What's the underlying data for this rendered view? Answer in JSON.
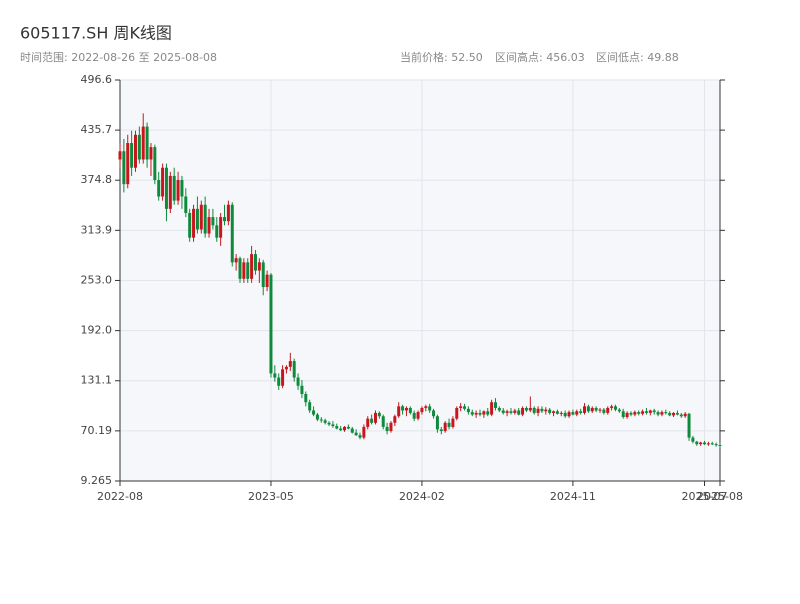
{
  "chart_data": {
    "type": "candlestick",
    "title": "605117.SH 周K线图",
    "range_text": "时间范围: 2022-08-26 至 2025-08-08",
    "current_price": "当前价格: 52.50",
    "range_high": "区间高点: 456.03",
    "range_low": "区间低点: 49.88",
    "up_color": "#c8161d",
    "down_color": "#0f8a3c",
    "grid": true,
    "ylim": [
      9.265,
      496.6
    ],
    "yticks": [
      9.265,
      70.19,
      131.1,
      {
        "value": 192.0,
        "label": "192.0"
      },
      {
        "value": 253.0,
        "label": "253.0"
      },
      313.9,
      374.8,
      435.7,
      496.6
    ],
    "xlim": [
      0,
      155
    ],
    "xticks": [
      {
        "value": 0,
        "label": "2022-08"
      },
      {
        "value": 39,
        "label": "2023-05"
      },
      {
        "value": 78,
        "label": "2024-02"
      },
      {
        "value": 117,
        "label": "2024-11"
      },
      {
        "value": 151,
        "label": "2025-07"
      },
      {
        "value": 155,
        "label": "2025-08"
      }
    ],
    "ohlc": [
      [
        400,
        420,
        390,
        410
      ],
      [
        410,
        425,
        360,
        370
      ],
      [
        370,
        430,
        365,
        420
      ],
      [
        420,
        435,
        380,
        390
      ],
      [
        390,
        435,
        385,
        430
      ],
      [
        430,
        440,
        395,
        400
      ],
      [
        400,
        456.03,
        395,
        440
      ],
      [
        440,
        445,
        390,
        400
      ],
      [
        400,
        420,
        380,
        415
      ],
      [
        415,
        418,
        370,
        375
      ],
      [
        375,
        385,
        350,
        355
      ],
      [
        355,
        395,
        350,
        390
      ],
      [
        390,
        395,
        325,
        340
      ],
      [
        340,
        385,
        335,
        380
      ],
      [
        380,
        390,
        345,
        350
      ],
      [
        350,
        385,
        345,
        375
      ],
      [
        375,
        380,
        340,
        355
      ],
      [
        355,
        365,
        330,
        335
      ],
      [
        335,
        340,
        300,
        305
      ],
      [
        305,
        345,
        300,
        340
      ],
      [
        340,
        355,
        310,
        315
      ],
      [
        315,
        350,
        310,
        345
      ],
      [
        345,
        355,
        305,
        310
      ],
      [
        310,
        340,
        305,
        330
      ],
      [
        330,
        340,
        315,
        320
      ],
      [
        320,
        330,
        300,
        305
      ],
      [
        305,
        335,
        295,
        330
      ],
      [
        330,
        345,
        320,
        325
      ],
      [
        325,
        350,
        320,
        345
      ],
      [
        345,
        348,
        270,
        275
      ],
      [
        275,
        285,
        265,
        280
      ],
      [
        280,
        282,
        250,
        255
      ],
      [
        255,
        280,
        250,
        275
      ],
      [
        275,
        280,
        250,
        255
      ],
      [
        255,
        295,
        250,
        285
      ],
      [
        285,
        290,
        260,
        265
      ],
      [
        265,
        280,
        250,
        275
      ],
      [
        275,
        278,
        235,
        245
      ],
      [
        245,
        265,
        240,
        260
      ],
      [
        260,
        262,
        135,
        140
      ],
      [
        140,
        150,
        130,
        135
      ],
      [
        135,
        140,
        120,
        125
      ],
      [
        125,
        150,
        122,
        145
      ],
      [
        145,
        150,
        140,
        148
      ],
      [
        148,
        165,
        143,
        155
      ],
      [
        155,
        158,
        130,
        135
      ],
      [
        135,
        140,
        120,
        125
      ],
      [
        125,
        132,
        110,
        115
      ],
      [
        115,
        118,
        100,
        105
      ],
      [
        105,
        108,
        92,
        95
      ],
      [
        95,
        100,
        88,
        90
      ],
      [
        90,
        92,
        82,
        84
      ],
      [
        84,
        87,
        80,
        83
      ],
      [
        83,
        85,
        78,
        80
      ],
      [
        80,
        82,
        76,
        78
      ],
      [
        78,
        82,
        74,
        76
      ],
      [
        76,
        79,
        72,
        73
      ],
      [
        73,
        76,
        70,
        71
      ],
      [
        71,
        76,
        69,
        75
      ],
      [
        75,
        78,
        72,
        73
      ],
      [
        73,
        75,
        67,
        68
      ],
      [
        68,
        72,
        64,
        65
      ],
      [
        65,
        68,
        60,
        62
      ],
      [
        62,
        78,
        60,
        75
      ],
      [
        75,
        88,
        72,
        85
      ],
      [
        85,
        90,
        78,
        80
      ],
      [
        80,
        95,
        78,
        92
      ],
      [
        92,
        94,
        85,
        88
      ],
      [
        88,
        90,
        72,
        75
      ],
      [
        75,
        80,
        66,
        70
      ],
      [
        70,
        82,
        68,
        80
      ],
      [
        80,
        90,
        76,
        88
      ],
      [
        88,
        105,
        86,
        100
      ],
      [
        100,
        102,
        90,
        95
      ],
      [
        95,
        100,
        88,
        98
      ],
      [
        98,
        100,
        90,
        92
      ],
      [
        92,
        95,
        82,
        85
      ],
      [
        85,
        95,
        83,
        93
      ],
      [
        93,
        100,
        90,
        98
      ],
      [
        98,
        102,
        94,
        100
      ],
      [
        100,
        103,
        92,
        95
      ],
      [
        95,
        97,
        85,
        88
      ],
      [
        88,
        90,
        68,
        72
      ],
      [
        72,
        75,
        66,
        70
      ],
      [
        70,
        82,
        68,
        80
      ],
      [
        80,
        85,
        72,
        75
      ],
      [
        75,
        88,
        73,
        85
      ],
      [
        85,
        100,
        83,
        98
      ],
      [
        98,
        104,
        94,
        100
      ],
      [
        100,
        103,
        95,
        97
      ],
      [
        97,
        100,
        90,
        93
      ],
      [
        93,
        96,
        88,
        90
      ],
      [
        90,
        95,
        86,
        92
      ],
      [
        92,
        96,
        88,
        90
      ],
      [
        90,
        95,
        86,
        94
      ],
      [
        94,
        98,
        88,
        90
      ],
      [
        90,
        108,
        88,
        105
      ],
      [
        105,
        110,
        95,
        98
      ],
      [
        98,
        100,
        93,
        95
      ],
      [
        95,
        98,
        90,
        92
      ],
      [
        92,
        96,
        88,
        94
      ],
      [
        94,
        98,
        90,
        92
      ],
      [
        92,
        97,
        90,
        95
      ],
      [
        95,
        98,
        89,
        90
      ],
      [
        90,
        100,
        88,
        98
      ],
      [
        98,
        100,
        93,
        95
      ],
      [
        95,
        112,
        93,
        98
      ],
      [
        98,
        100,
        90,
        92
      ],
      [
        92,
        100,
        88,
        97
      ],
      [
        97,
        100,
        92,
        94
      ],
      [
        94,
        99,
        90,
        96
      ],
      [
        96,
        98,
        90,
        92
      ],
      [
        92,
        95,
        88,
        94
      ],
      [
        94,
        96,
        90,
        91
      ],
      [
        91,
        94,
        88,
        92
      ],
      [
        92,
        95,
        86,
        88
      ],
      [
        88,
        95,
        86,
        93
      ],
      [
        93,
        96,
        89,
        90
      ],
      [
        90,
        96,
        88,
        94
      ],
      [
        94,
        97,
        90,
        92
      ],
      [
        92,
        104,
        90,
        100
      ],
      [
        100,
        102,
        92,
        94
      ],
      [
        94,
        100,
        92,
        98
      ],
      [
        98,
        100,
        93,
        95
      ],
      [
        95,
        98,
        92,
        96
      ],
      [
        96,
        98,
        90,
        92
      ],
      [
        92,
        100,
        90,
        98
      ],
      [
        98,
        102,
        95,
        100
      ],
      [
        100,
        102,
        94,
        96
      ],
      [
        96,
        98,
        92,
        94
      ],
      [
        94,
        97,
        85,
        87
      ],
      [
        87,
        94,
        85,
        92
      ],
      [
        92,
        94,
        88,
        90
      ],
      [
        90,
        95,
        88,
        93
      ],
      [
        93,
        95,
        89,
        91
      ],
      [
        91,
        96,
        89,
        94
      ],
      [
        94,
        98,
        90,
        92
      ],
      [
        92,
        96,
        89,
        95
      ],
      [
        95,
        97,
        90,
        93
      ],
      [
        93,
        95,
        88,
        90
      ],
      [
        90,
        95,
        88,
        93
      ],
      [
        93,
        96,
        90,
        92
      ],
      [
        92,
        94,
        88,
        89
      ],
      [
        89,
        93,
        87,
        92
      ],
      [
        92,
        95,
        89,
        90
      ],
      [
        90,
        92,
        86,
        88
      ],
      [
        88,
        93,
        86,
        91
      ],
      [
        91,
        92,
        58,
        62
      ],
      [
        62,
        64,
        55,
        57
      ],
      [
        57,
        58,
        52,
        54
      ],
      [
        54,
        57,
        52,
        56
      ],
      [
        56,
        58,
        53,
        54
      ],
      [
        54,
        57,
        52,
        55
      ],
      [
        55,
        57,
        53,
        54
      ],
      [
        54,
        56,
        51,
        53
      ],
      [
        53,
        55,
        49.88,
        52.5
      ]
    ]
  }
}
